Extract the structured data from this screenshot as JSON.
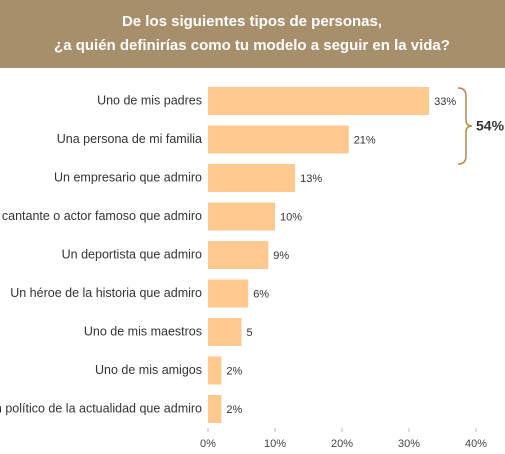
{
  "chart_data": {
    "type": "bar",
    "orientation": "horizontal",
    "title_lines": [
      "De los siguientes tipos de personas,",
      "¿a quién definirías como tu modelo a seguir en la vida?"
    ],
    "categories": [
      "Uno de mis padres",
      "Una persona de mi familia",
      "Un empresario que admiro",
      "Un cantante o actor famoso que admiro",
      "Un deportista que admiro",
      "Un héroe de la historia que admiro",
      "Uno de mis maestros",
      "Uno de mis amigos",
      "Un político de la actualidad que admiro"
    ],
    "values": [
      33,
      21,
      13,
      10,
      9,
      6,
      5,
      2,
      2
    ],
    "value_labels": [
      "33%",
      "21%",
      "13%",
      "10%",
      "9%",
      "6%",
      "5",
      "2%",
      "2%"
    ],
    "color": "#fdc98f",
    "xlim": [
      0,
      40
    ],
    "xticks": [
      {
        "value": 0,
        "label": "0%"
      },
      {
        "value": 10,
        "label": "10%"
      },
      {
        "value": 20,
        "label": "20%"
      },
      {
        "value": 30,
        "label": "30%"
      },
      {
        "value": 40,
        "label": "40%"
      }
    ],
    "annotation": "54%"
  }
}
